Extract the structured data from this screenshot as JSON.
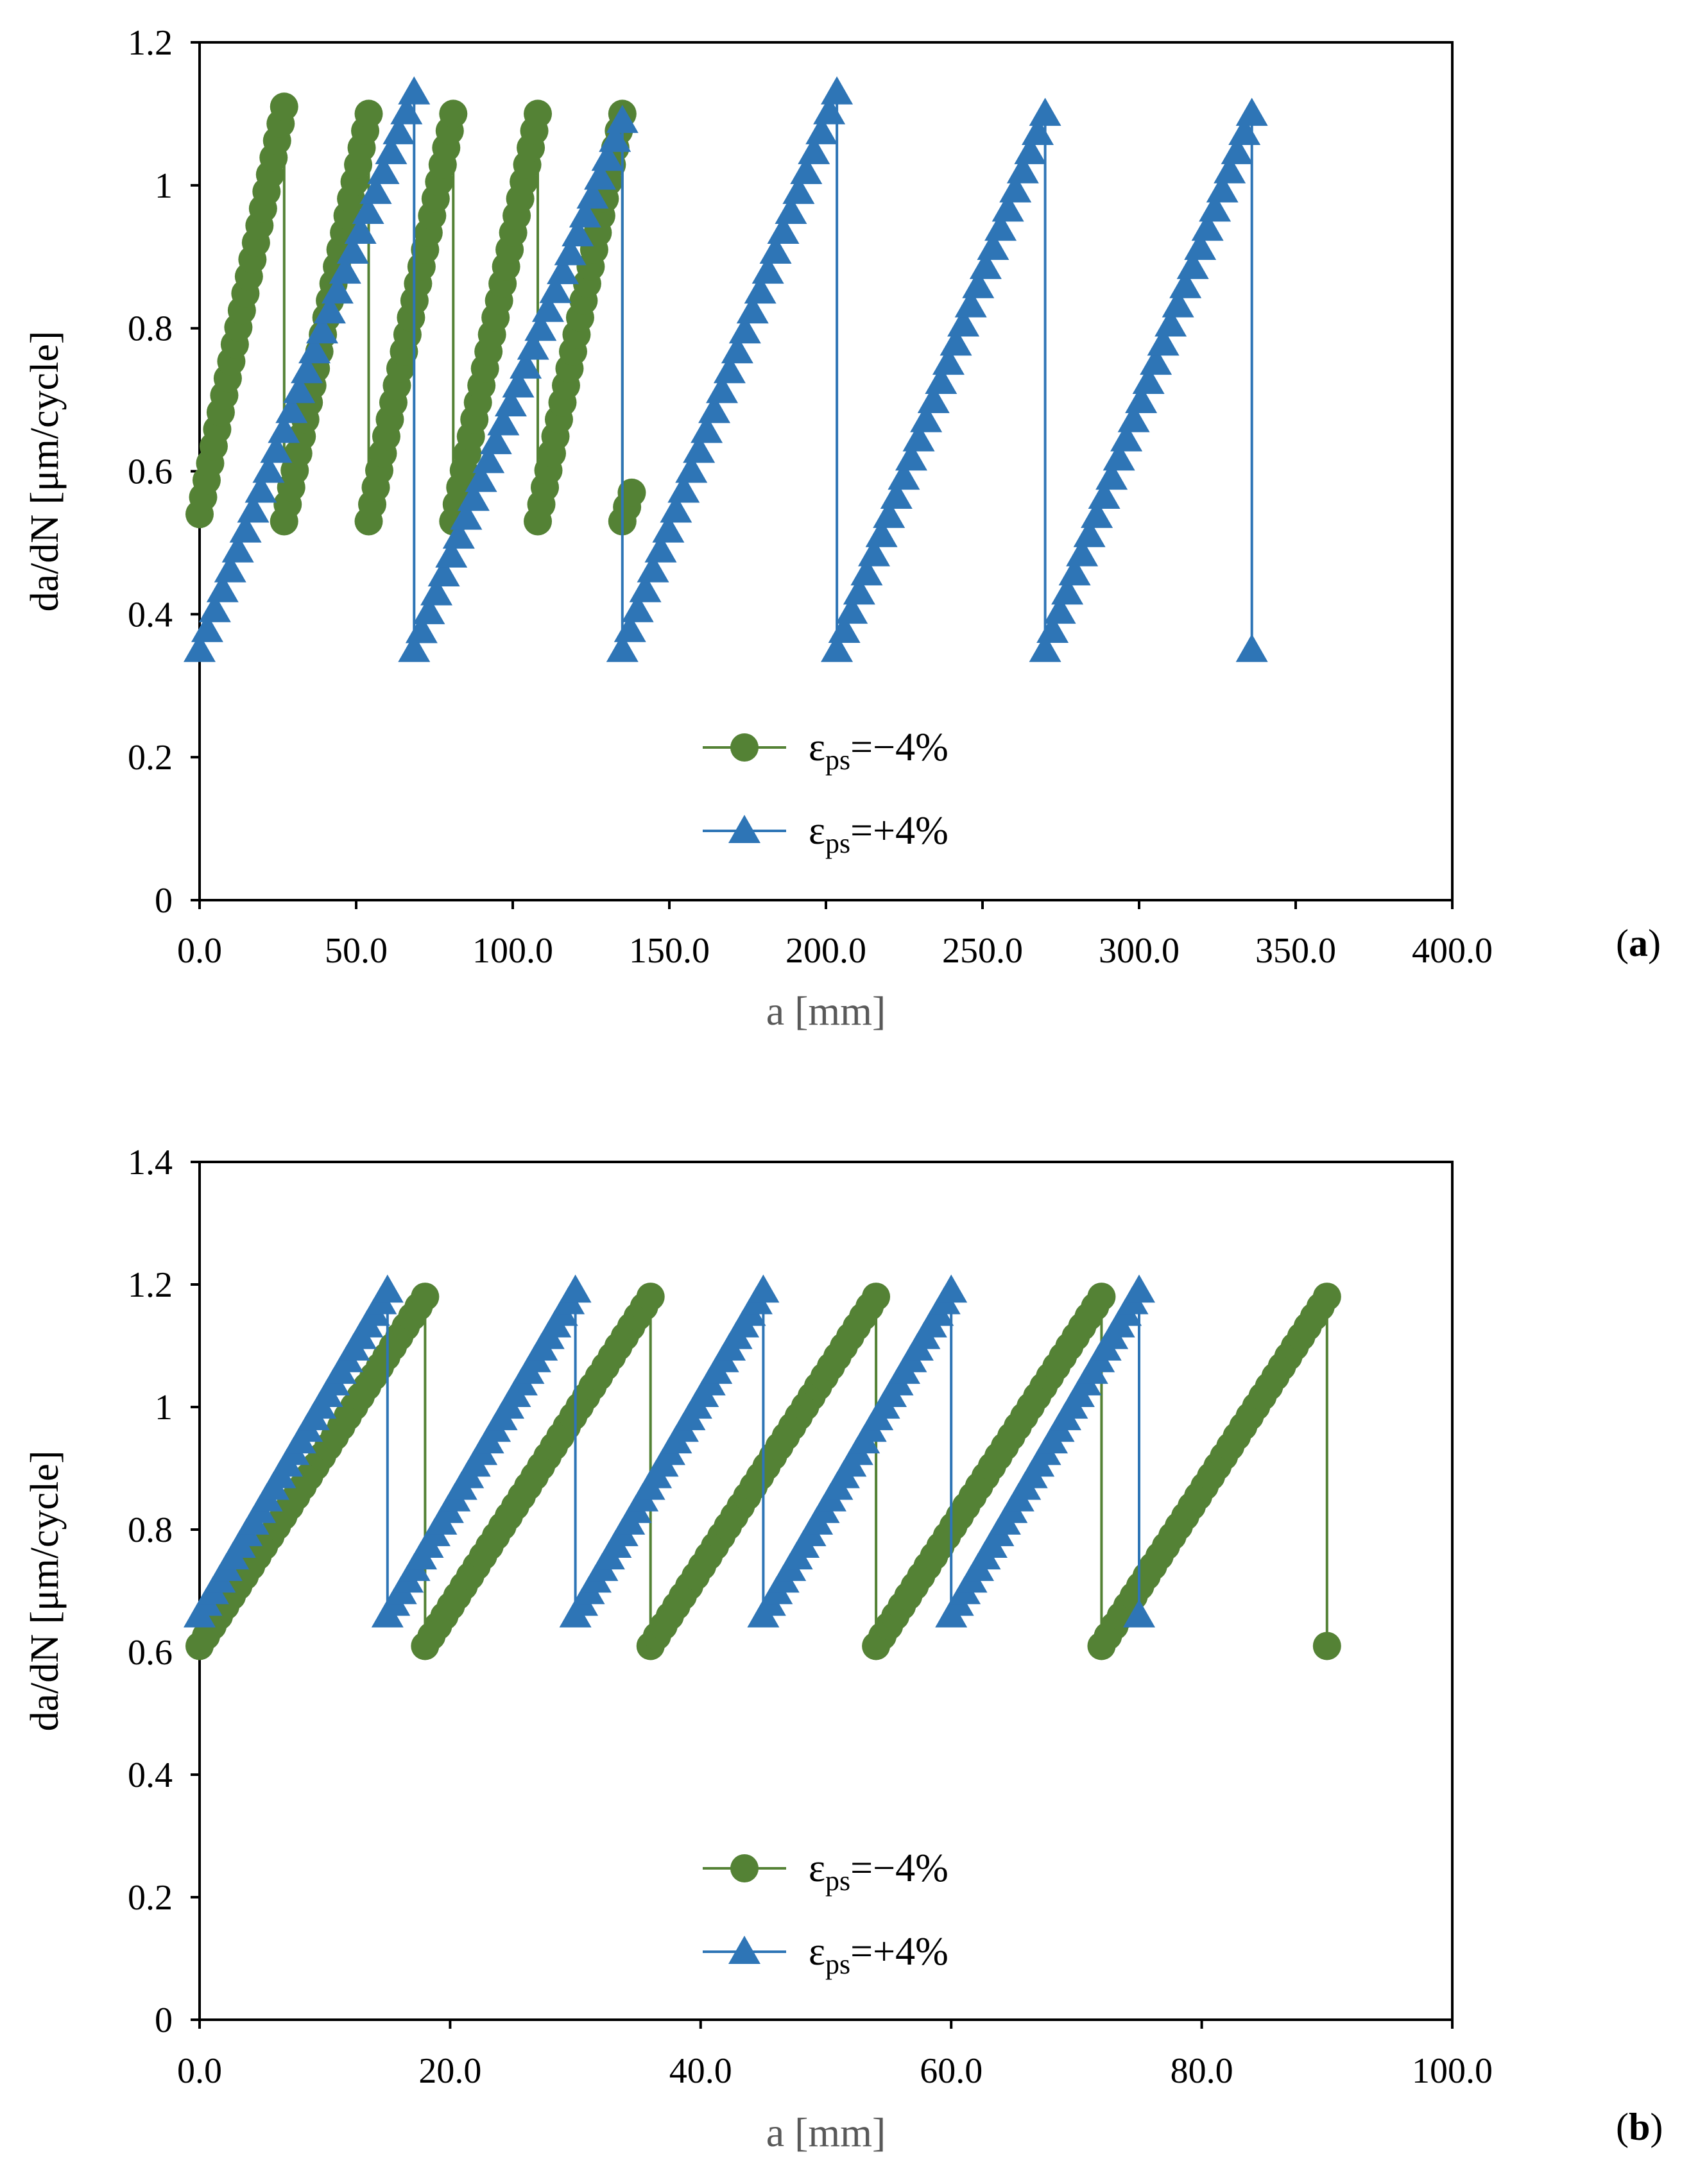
{
  "colors": {
    "green": "#548235",
    "blue": "#2E75B6",
    "axis": "#000000",
    "x_title": "#595959"
  },
  "chart_data": [
    {
      "panel_label": "a",
      "type": "line",
      "xlabel": "a [mm]",
      "ylabel": "da/dN [μm/cycle]",
      "xlim": [
        0,
        400
      ],
      "ylim": [
        0,
        1.2
      ],
      "x_ticks": [
        0,
        50,
        100,
        150,
        200,
        250,
        300,
        350,
        400
      ],
      "x_tick_labels": [
        "0.0",
        "50.0",
        "100.0",
        "150.0",
        "200.0",
        "250.0",
        "300.0",
        "350.0",
        "400.0"
      ],
      "y_ticks": [
        0,
        0.2,
        0.4,
        0.6,
        0.8,
        1,
        1.2
      ],
      "y_tick_labels": [
        "0",
        "0.2",
        "0.4",
        "0.6",
        "0.8",
        "1",
        "1.2"
      ],
      "legend": {
        "location": "center-bottom"
      },
      "series": [
        {
          "name": "εps=−4%",
          "label_main": "ε",
          "label_sub": "ps",
          "label_tail": "=−4%",
          "color": "#548235",
          "marker": "circle",
          "segments": [
            {
              "a_start": 0,
              "a_end": 27,
              "y_start": 0.54,
              "y_end": 1.11,
              "steps": 12
            },
            {
              "a_start": 27,
              "a_end": 54,
              "y_start": 0.53,
              "y_end": 1.1,
              "steps": 12
            },
            {
              "a_start": 54,
              "a_end": 81,
              "y_start": 0.53,
              "y_end": 1.1,
              "steps": 12
            },
            {
              "a_start": 81,
              "a_end": 108,
              "y_start": 0.53,
              "y_end": 1.1,
              "steps": 12
            },
            {
              "a_start": 108,
              "a_end": 135,
              "y_start": 0.53,
              "y_end": 1.1,
              "steps": 12
            }
          ],
          "tail": [
            {
              "a": 135,
              "y": 0.53
            },
            {
              "a": 138,
              "y": 0.57
            }
          ]
        },
        {
          "name": "εps=+4%",
          "label_main": "ε",
          "label_sub": "ps",
          "label_tail": "=+4%",
          "color": "#2E75B6",
          "marker": "triangle",
          "segments": [
            {
              "a_start": 0,
              "a_end": 68.5,
              "y_start": 0.35,
              "y_end": 1.13,
              "steps": 28
            },
            {
              "a_start": 68.5,
              "a_end": 135,
              "y_start": 0.35,
              "y_end": 1.09,
              "steps": 28
            },
            {
              "a_start": 135,
              "a_end": 203.5,
              "y_start": 0.35,
              "y_end": 1.13,
              "steps": 28
            },
            {
              "a_start": 203.5,
              "a_end": 270,
              "y_start": 0.35,
              "y_end": 1.1,
              "steps": 28
            },
            {
              "a_start": 270,
              "a_end": 336,
              "y_start": 0.35,
              "y_end": 1.1,
              "steps": 28
            }
          ],
          "tail": [
            {
              "a": 336,
              "y": 0.35
            }
          ]
        }
      ]
    },
    {
      "panel_label": "b",
      "type": "line",
      "xlabel": "a [mm]",
      "ylabel": "da/dN [μm/cycle]",
      "xlim": [
        0,
        100
      ],
      "ylim": [
        0,
        1.4
      ],
      "x_ticks": [
        0,
        20,
        40,
        60,
        80,
        100
      ],
      "x_tick_labels": [
        "0.0",
        "20.0",
        "40.0",
        "60.0",
        "80.0",
        "100.0"
      ],
      "y_ticks": [
        0,
        0.2,
        0.4,
        0.6,
        0.8,
        1,
        1.2,
        1.4
      ],
      "y_tick_labels": [
        "0",
        "0.2",
        "0.4",
        "0.6",
        "0.8",
        "1",
        "1.2",
        "1.4"
      ],
      "legend": {
        "location": "center-bottom"
      },
      "series": [
        {
          "name": "εps=−4%",
          "label_main": "ε",
          "label_sub": "ps",
          "label_tail": "=−4%",
          "color": "#548235",
          "marker": "circle",
          "segments": [
            {
              "a_start": 0,
              "a_end": 18,
              "y_start": 0.61,
              "y_end": 1.18,
              "steps": 7
            },
            {
              "a_start": 18,
              "a_end": 36,
              "y_start": 0.61,
              "y_end": 1.18,
              "steps": 7
            },
            {
              "a_start": 36,
              "a_end": 54,
              "y_start": 0.61,
              "y_end": 1.18,
              "steps": 7
            },
            {
              "a_start": 54,
              "a_end": 72,
              "y_start": 0.61,
              "y_end": 1.18,
              "steps": 7
            },
            {
              "a_start": 72,
              "a_end": 90,
              "y_start": 0.61,
              "y_end": 1.18,
              "steps": 7
            }
          ],
          "tail": [
            {
              "a": 90,
              "y": 0.61
            }
          ]
        },
        {
          "name": "εps=+4%",
          "label_main": "ε",
          "label_sub": "ps",
          "label_tail": "=+4%",
          "color": "#2E75B6",
          "marker": "triangle",
          "segments": [
            {
              "a_start": 0,
              "a_end": 15,
              "y_start": 0.66,
              "y_end": 1.19,
              "steps": 7
            },
            {
              "a_start": 15,
              "a_end": 30,
              "y_start": 0.66,
              "y_end": 1.19,
              "steps": 7
            },
            {
              "a_start": 30,
              "a_end": 45,
              "y_start": 0.66,
              "y_end": 1.19,
              "steps": 7
            },
            {
              "a_start": 45,
              "a_end": 60,
              "y_start": 0.66,
              "y_end": 1.19,
              "steps": 7
            },
            {
              "a_start": 60,
              "a_end": 75,
              "y_start": 0.66,
              "y_end": 1.19,
              "steps": 7
            }
          ],
          "tail": [
            {
              "a": 75,
              "y": 0.66
            }
          ]
        }
      ]
    }
  ]
}
